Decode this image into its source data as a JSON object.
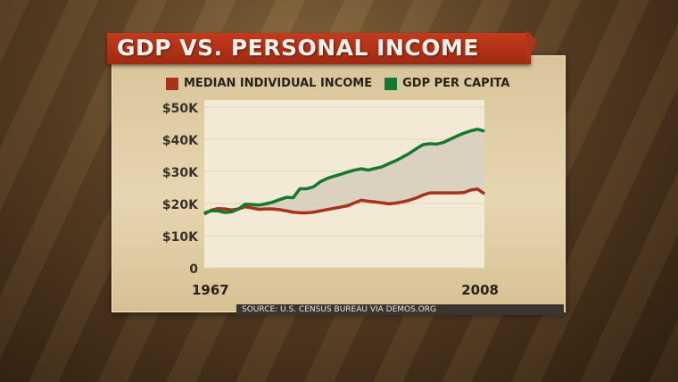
{
  "title": "GDP VS. PERSONAL INCOME",
  "source": "SOURCE: U.S. CENSUS BUREAU VIA DEMOS.ORG",
  "colors": {
    "median": "#a8321a",
    "gdp": "#15782e",
    "fill": "#d6cdbd"
  },
  "chart_data": {
    "type": "line",
    "title": "GDP VS. PERSONAL INCOME",
    "xlabel": "",
    "ylabel": "",
    "x_tick_labels": [
      "1967",
      "2008"
    ],
    "y_tick_labels": [
      "0",
      "$10K",
      "$20K",
      "$30K",
      "$40K",
      "$50K"
    ],
    "y_tick_values": [
      0,
      10,
      20,
      30,
      40,
      50
    ],
    "xlim": [
      1967,
      2008
    ],
    "ylim": [
      0,
      50
    ],
    "grid": true,
    "legend": "top",
    "x": [
      1967,
      1968,
      1969,
      1970,
      1971,
      1972,
      1973,
      1974,
      1975,
      1976,
      1977,
      1978,
      1979,
      1980,
      1981,
      1982,
      1983,
      1984,
      1985,
      1986,
      1987,
      1988,
      1989,
      1990,
      1991,
      1992,
      1993,
      1994,
      1995,
      1996,
      1997,
      1998,
      1999,
      2000,
      2001,
      2002,
      2003,
      2004,
      2005,
      2006,
      2007,
      2008
    ],
    "series": [
      {
        "name": "MEDIAN INDIVIDUAL INCOME",
        "color": "#a8321a",
        "values": [
          16.7,
          17.9,
          18.4,
          18.3,
          18.0,
          18.3,
          19.0,
          18.6,
          18.2,
          18.3,
          18.3,
          18.1,
          17.7,
          17.3,
          17.1,
          17.1,
          17.3,
          17.7,
          18.1,
          18.5,
          18.9,
          19.3,
          20.2,
          21.0,
          20.7,
          20.5,
          20.2,
          19.9,
          20.1,
          20.5,
          21.0,
          21.7,
          22.6,
          23.3,
          23.3,
          23.3,
          23.3,
          23.3,
          23.4,
          24.2,
          24.5,
          23.0
        ]
      },
      {
        "name": "GDP PER CAPITA",
        "color": "#15782e",
        "values": [
          17.1,
          17.7,
          17.7,
          17.2,
          17.4,
          18.3,
          19.8,
          19.7,
          19.5,
          19.9,
          20.4,
          21.2,
          21.9,
          21.8,
          24.6,
          24.6,
          25.2,
          26.8,
          27.8,
          28.5,
          29.1,
          29.8,
          30.4,
          30.8,
          30.4,
          30.9,
          31.4,
          32.4,
          33.3,
          34.4,
          35.6,
          37.0,
          38.3,
          38.6,
          38.5,
          39.0,
          40.0,
          41.0,
          41.9,
          42.6,
          43.1,
          42.5
        ]
      }
    ]
  }
}
